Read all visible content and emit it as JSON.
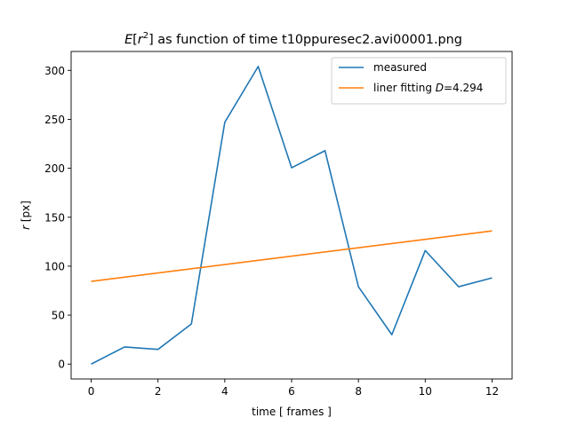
{
  "chart_data": {
    "type": "line",
    "title": {
      "prefix": "E",
      "bracket_open": "[",
      "var": "r",
      "sup": "2",
      "bracket_close": "]",
      "rest": " as function of time t10ppuresec2.avi00001.png"
    },
    "xlabel": "time [ frames ]",
    "ylabel": {
      "var": "r",
      "rest": " [px]"
    },
    "xlim": [
      -0.6,
      12.6
    ],
    "ylim": [
      -15.2,
      319.3
    ],
    "xticks": [
      0,
      2,
      4,
      6,
      8,
      10,
      12
    ],
    "xtick_labels": [
      "0",
      "2",
      "4",
      "6",
      "8",
      "10",
      "12"
    ],
    "yticks": [
      0,
      50,
      100,
      150,
      200,
      250,
      300
    ],
    "ytick_labels": [
      "0",
      "50",
      "100",
      "150",
      "200",
      "250",
      "300"
    ],
    "grid": false,
    "legend_position": "top-right",
    "series": [
      {
        "name": "measured",
        "color": "#1f77b4",
        "x": [
          0,
          1,
          2,
          3,
          4,
          5,
          6,
          7,
          8,
          9,
          10,
          11,
          12
        ],
        "y": [
          0,
          17.5,
          15,
          41,
          247,
          304,
          200.5,
          218,
          79,
          30,
          116,
          79,
          88
        ]
      },
      {
        "name_prefix": "liner fitting ",
        "name_var": "D",
        "name_suffix": "=4.294",
        "color": "#ff7f0e",
        "x": [
          0,
          12
        ],
        "y": [
          84.5,
          136
        ]
      }
    ]
  }
}
